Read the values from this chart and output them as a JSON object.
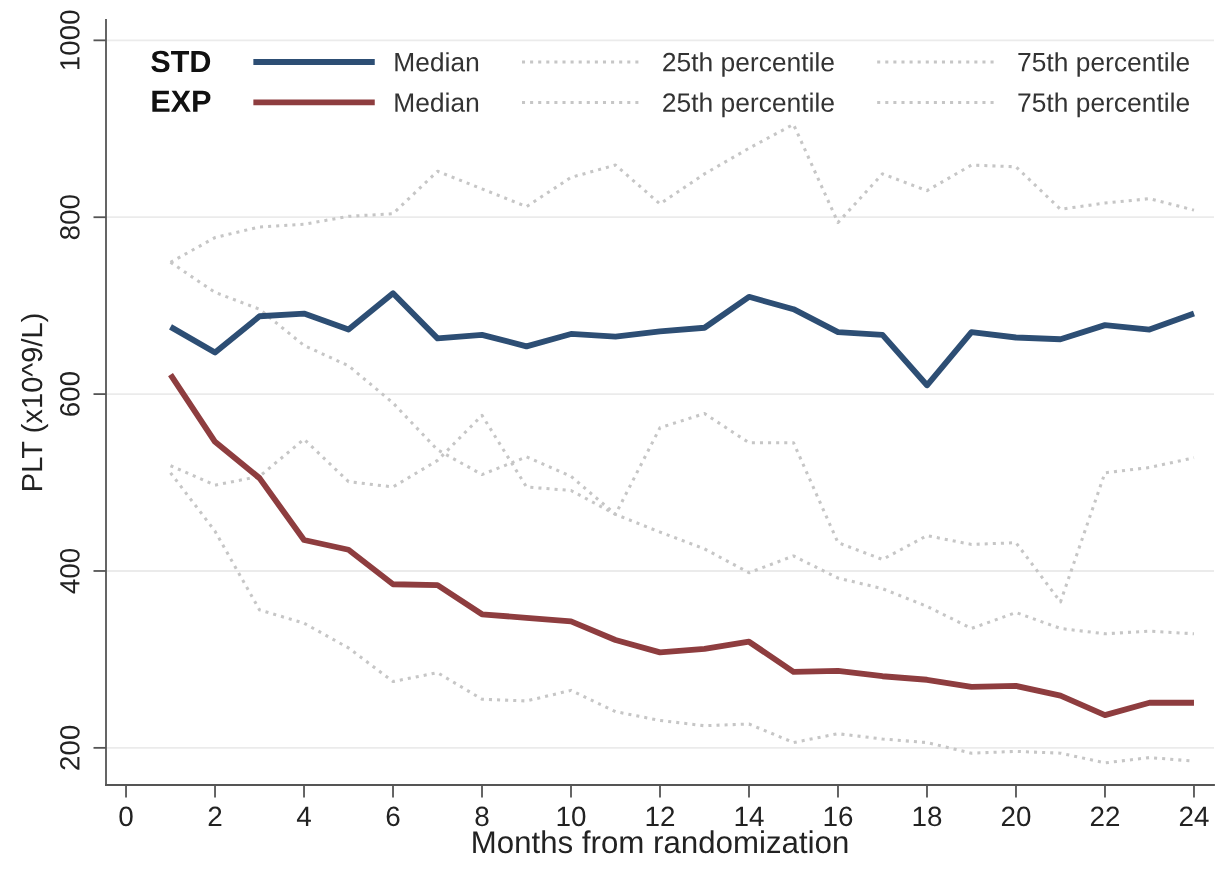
{
  "chart_data": {
    "type": "line",
    "xlabel": "Months from randomization",
    "ylabel": "PLT (x10^9/L)",
    "x": [
      1,
      2,
      3,
      4,
      5,
      6,
      7,
      8,
      9,
      10,
      11,
      12,
      13,
      14,
      15,
      16,
      17,
      18,
      19,
      20,
      21,
      22,
      23,
      24
    ],
    "series": [
      {
        "name": "Median",
        "color": "#2d4e74",
        "line_style": "solid",
        "values": [
          676,
          647,
          688,
          691,
          673,
          714,
          663,
          667,
          654,
          668,
          665,
          671,
          675,
          710,
          696,
          670,
          667,
          610,
          670,
          664,
          662,
          678,
          673,
          691
        ]
      },
      {
        "name": "25th percentile",
        "color": "#c6c6c6",
        "line_style": "dotted",
        "values": [
          519,
          497,
          507,
          549,
          501,
          495,
          525,
          576,
          495,
          491,
          464,
          562,
          578,
          545,
          545,
          432,
          413,
          440,
          430,
          432,
          365,
          511,
          517,
          528
        ]
      },
      {
        "name": "75th percentile",
        "color": "#c6c6c6",
        "line_style": "dotted",
        "values": [
          749,
          777,
          789,
          792,
          801,
          804,
          852,
          832,
          812,
          845,
          859,
          815,
          849,
          878,
          905,
          794,
          849,
          830,
          859,
          857,
          809,
          816,
          821,
          808
        ]
      },
      {
        "name": "Median",
        "color": "#8e3d3f",
        "line_style": "solid",
        "values": [
          622,
          546,
          505,
          435,
          424,
          385,
          384,
          351,
          347,
          343,
          322,
          308,
          312,
          320,
          286,
          287,
          281,
          277,
          269,
          270,
          259,
          237,
          251,
          251
        ]
      },
      {
        "name": "25th percentile",
        "color": "#c6c6c6",
        "line_style": "dotted",
        "values": [
          511,
          445,
          356,
          341,
          313,
          275,
          285,
          255,
          253,
          265,
          241,
          231,
          225,
          227,
          206,
          216,
          210,
          206,
          194,
          196,
          194,
          183,
          189,
          185
        ]
      },
      {
        "name": "75th percentile",
        "color": "#c6c6c6",
        "line_style": "dotted",
        "values": [
          749,
          715,
          696,
          655,
          632,
          590,
          537,
          509,
          529,
          507,
          464,
          444,
          425,
          398,
          417,
          392,
          380,
          360,
          335,
          353,
          335,
          329,
          332,
          329
        ]
      }
    ],
    "xlim": [
      -0.45,
      24.45
    ],
    "ylim": [
      158,
      1023
    ],
    "xticks": [
      0,
      2,
      4,
      6,
      8,
      10,
      12,
      14,
      16,
      18,
      20,
      22,
      24
    ],
    "yticks": [
      200,
      400,
      600,
      800,
      1000
    ],
    "grid": "y",
    "legend": "top",
    "annotations": [
      "STD",
      "EXP"
    ]
  }
}
